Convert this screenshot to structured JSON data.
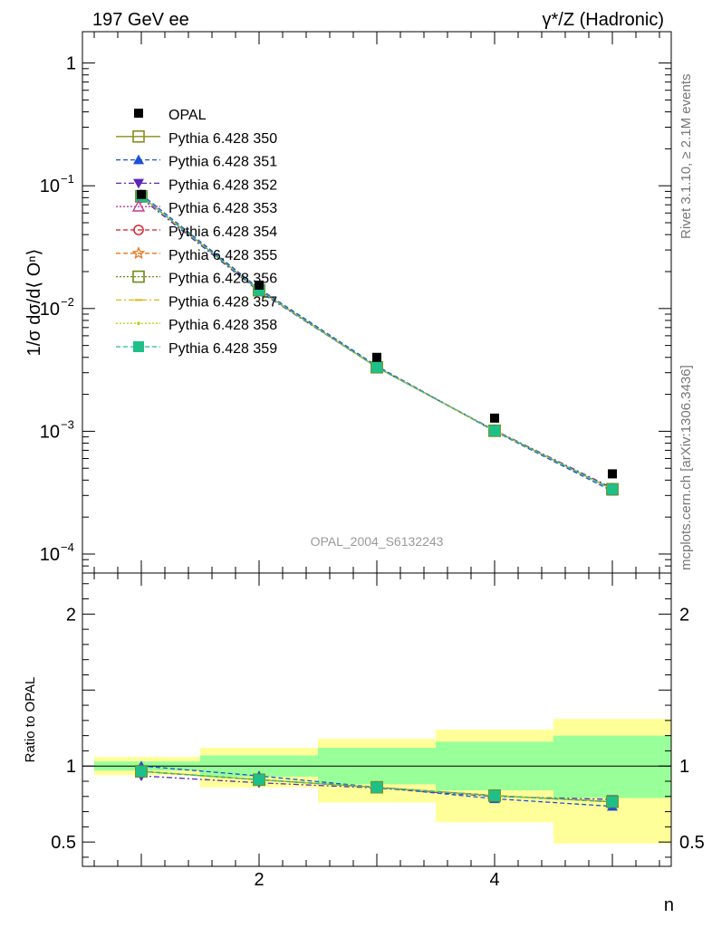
{
  "header": {
    "left_title": "197 GeV ee",
    "right_title": "γ*/Z (Hadronic)"
  },
  "side_labels": {
    "rivet": "Rivet 3.1.10, ≥ 2.1M events",
    "mcplots": "mcplots.cern.ch [arXiv:1306.3436]"
  },
  "watermark": "OPAL_2004_S6132243",
  "chart_data": [
    {
      "type": "line",
      "panel": "main",
      "yscale": "log",
      "ylabel": "1/σ dσ/d⟨ Oⁿ⟩",
      "xlabel": "n",
      "xlim": [
        0.5,
        5.5
      ],
      "ylim": [
        7e-05,
        1.8
      ],
      "y_ticks": [
        {
          "value": 1,
          "label": "1"
        },
        {
          "value": 0.1,
          "label": "10",
          "exp": "−1"
        },
        {
          "value": 0.01,
          "label": "10",
          "exp": "−2"
        },
        {
          "value": 0.001,
          "label": "10",
          "exp": "−3"
        },
        {
          "value": 0.0001,
          "label": "10",
          "exp": "−4"
        }
      ],
      "x": [
        1,
        2,
        3,
        4,
        5
      ],
      "data": {
        "name": "OPAL",
        "values": [
          0.085,
          0.0155,
          0.004,
          0.00128,
          0.00045
        ]
      },
      "series": [
        {
          "name": "Pythia 6.428 350",
          "color": "#8b8b1e",
          "marker": "square-open",
          "dash": "solid",
          "values": [
            0.082,
            0.0141,
            0.00332,
            0.00101,
            0.000337
          ]
        },
        {
          "name": "Pythia 6.428 351",
          "color": "#1f4fd6",
          "marker": "triangle-up",
          "dash": "dashed",
          "values": [
            0.085,
            0.0145,
            0.0034,
            0.001,
            0.000325
          ]
        },
        {
          "name": "Pythia 6.428 352",
          "color": "#5a27b8",
          "marker": "triangle-down",
          "dash": "dashdot",
          "values": [
            0.079,
            0.0138,
            0.00332,
            0.00102,
            0.000345
          ]
        },
        {
          "name": "Pythia 6.428 353",
          "color": "#c0399a",
          "marker": "triangle-up-open",
          "dash": "dotted",
          "values": [
            0.082,
            0.0141,
            0.00332,
            0.00101,
            0.000337
          ]
        },
        {
          "name": "Pythia 6.428 354",
          "color": "#d6182a",
          "marker": "circle-open",
          "dash": "dashed",
          "values": [
            0.082,
            0.0141,
            0.00332,
            0.00101,
            0.000337
          ]
        },
        {
          "name": "Pythia 6.428 355",
          "color": "#e8751a",
          "marker": "star-open",
          "dash": "dashed",
          "values": [
            0.082,
            0.0141,
            0.00332,
            0.00101,
            0.000337
          ]
        },
        {
          "name": "Pythia 6.428 356",
          "color": "#6f8a12",
          "marker": "square-open",
          "dash": "dotted",
          "values": [
            0.082,
            0.0141,
            0.00332,
            0.00101,
            0.000337
          ]
        },
        {
          "name": "Pythia 6.428 357",
          "color": "#d9b81a",
          "marker": "dash",
          "dash": "dashdot",
          "values": [
            0.082,
            0.0141,
            0.00332,
            0.00101,
            0.000337
          ]
        },
        {
          "name": "Pythia 6.428 358",
          "color": "#b6d618",
          "marker": "dot",
          "dash": "dotted",
          "values": [
            0.082,
            0.0141,
            0.00332,
            0.00101,
            0.000337
          ]
        },
        {
          "name": "Pythia 6.428 359",
          "color": "#1fbf8a",
          "marker": "square",
          "dash": "dashed",
          "values": [
            0.082,
            0.0141,
            0.00332,
            0.00101,
            0.000337
          ]
        }
      ]
    },
    {
      "type": "line",
      "panel": "ratio",
      "ylabel": "Ratio to OPAL",
      "xlabel": "n",
      "xlim": [
        0.5,
        5.5
      ],
      "ylim": [
        0.34,
        2.27
      ],
      "y_ticks": [
        {
          "value": 2,
          "label": "2"
        },
        {
          "value": 1,
          "label": "1"
        },
        {
          "value": 0.5,
          "label": "0.5"
        }
      ],
      "x_ticks": [
        {
          "value": 2,
          "label": "2"
        },
        {
          "value": 4,
          "label": "4"
        }
      ],
      "bands": [
        {
          "x_from": 0.6,
          "x_to": 1.5,
          "green": [
            0.97,
            1.03
          ],
          "yellow": [
            0.94,
            1.06
          ]
        },
        {
          "x_from": 1.5,
          "x_to": 2.5,
          "green": [
            0.93,
            1.07
          ],
          "yellow": [
            0.86,
            1.12
          ]
        },
        {
          "x_from": 2.5,
          "x_to": 3.5,
          "green": [
            0.88,
            1.12
          ],
          "yellow": [
            0.76,
            1.18
          ]
        },
        {
          "x_from": 3.5,
          "x_to": 4.5,
          "green": [
            0.84,
            1.16
          ],
          "yellow": [
            0.63,
            1.24
          ]
        },
        {
          "x_from": 4.5,
          "x_to": 5.5,
          "green": [
            0.79,
            1.2
          ],
          "yellow": [
            0.49,
            1.31
          ]
        }
      ],
      "series": [
        {
          "name": "Pythia 6.428 350",
          "values": [
            0.965,
            0.91,
            0.86,
            0.805,
            0.765
          ]
        },
        {
          "name": "Pythia 6.428 351",
          "values": [
            1.0,
            0.935,
            0.86,
            0.785,
            0.735
          ]
        },
        {
          "name": "Pythia 6.428 352",
          "values": [
            0.935,
            0.89,
            0.855,
            0.8,
            0.78
          ]
        },
        {
          "name": "Pythia 6.428 353",
          "values": [
            0.965,
            0.91,
            0.86,
            0.805,
            0.765
          ]
        },
        {
          "name": "Pythia 6.428 354",
          "values": [
            0.965,
            0.91,
            0.86,
            0.805,
            0.765
          ]
        },
        {
          "name": "Pythia 6.428 355",
          "values": [
            0.965,
            0.91,
            0.86,
            0.805,
            0.765
          ]
        },
        {
          "name": "Pythia 6.428 356",
          "values": [
            0.965,
            0.91,
            0.86,
            0.805,
            0.765
          ]
        },
        {
          "name": "Pythia 6.428 357",
          "values": [
            0.965,
            0.91,
            0.86,
            0.805,
            0.765
          ]
        },
        {
          "name": "Pythia 6.428 358",
          "values": [
            0.965,
            0.91,
            0.86,
            0.805,
            0.765
          ]
        },
        {
          "name": "Pythia 6.428 359",
          "values": [
            0.965,
            0.91,
            0.86,
            0.805,
            0.765
          ]
        }
      ]
    }
  ]
}
